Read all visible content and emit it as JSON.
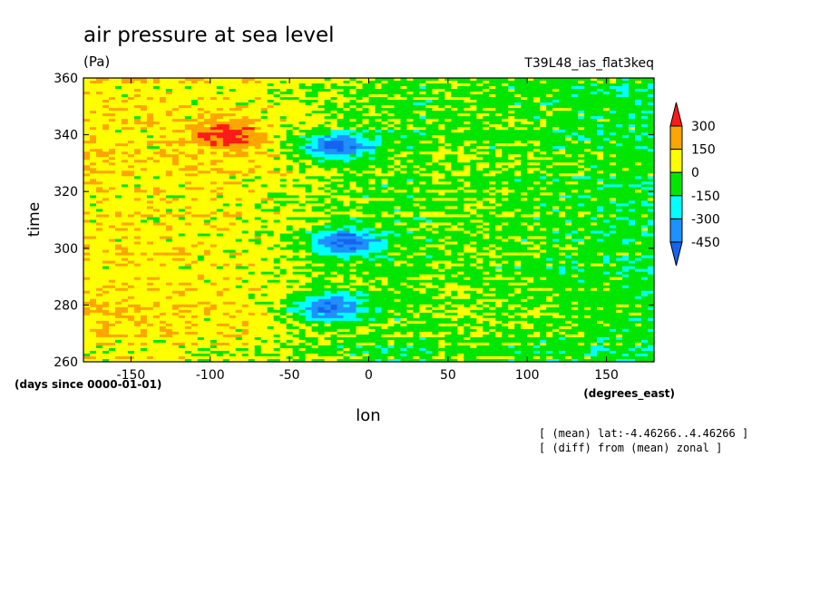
{
  "chart_data": {
    "type": "heatmap",
    "title": "air pressure at sea level",
    "units": "(Pa)",
    "run_label": "T39L48_ias_flat3keq",
    "xlabel": "lon",
    "ylabel": "time",
    "x_units": "(degrees_east)",
    "y_units": "(days since 0000-01-01)",
    "xlim": [
      -180,
      180
    ],
    "ylim": [
      260,
      360
    ],
    "x_ticks": [
      -150,
      -100,
      -50,
      0,
      50,
      100,
      150
    ],
    "y_ticks": [
      260,
      280,
      300,
      320,
      340,
      360
    ],
    "x_tick_labels": [
      "-150",
      "-100",
      "-50",
      "0",
      "50",
      "100",
      "150"
    ],
    "y_tick_labels": [
      "260",
      "280",
      "300",
      "320",
      "340",
      "360"
    ],
    "colorbar": {
      "levels": [
        300,
        150,
        0,
        -150,
        -300,
        -450
      ],
      "labels": [
        "300",
        "150",
        "0",
        "-150",
        "-300",
        "-450"
      ],
      "colors": [
        "#ff1a1a",
        "#ffa500",
        "#ffff00",
        "#00e600",
        "#00ffff",
        "#1e90ff",
        "#1464f0"
      ]
    },
    "features": [
      {
        "lon": -90,
        "time": 340,
        "value": 300
      },
      {
        "lon": -20,
        "time": 336,
        "value": -450
      },
      {
        "lon": -15,
        "time": 302,
        "value": -450
      },
      {
        "lon": -25,
        "time": 279,
        "value": -450
      }
    ],
    "notes": [
      "[ (mean) lat:-4.46266..4.46266 ]",
      "[ (diff) from (mean) zonal ]"
    ]
  }
}
